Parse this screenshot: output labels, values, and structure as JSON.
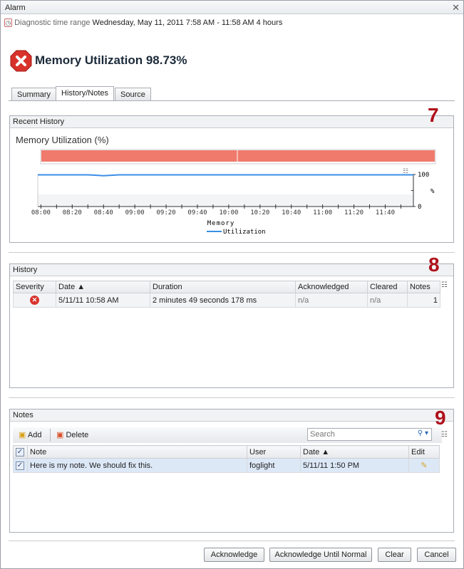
{
  "window": {
    "title": "Alarm",
    "close_icon": "close-icon"
  },
  "range": {
    "label": "Diagnostic time range",
    "value": "Wednesday, May 11, 2011  7:58 AM - 11:58 AM  4 hours"
  },
  "alarm": {
    "title": "Memory Utilization 98.73%",
    "severity": "critical"
  },
  "tabs": [
    {
      "label": "Summary"
    },
    {
      "label": "History/Notes",
      "active": true
    },
    {
      "label": "Source"
    }
  ],
  "recent_history": {
    "header": "Recent History",
    "marker": "7"
  },
  "chart_data": {
    "type": "line",
    "title": "Memory Utilization (%)",
    "xlabel": "Memory",
    "ylabel": "%",
    "ylim": [
      0,
      100
    ],
    "yticks": [
      "100",
      "0"
    ],
    "xticks": [
      "08:00",
      "08:20",
      "08:40",
      "09:00",
      "09:20",
      "09:40",
      "10:00",
      "10:20",
      "10:40",
      "11:00",
      "11:20",
      "11:40"
    ],
    "xrange": [
      "07:58",
      "11:58"
    ],
    "series": [
      {
        "name": "Utilization",
        "color": "#3a8ee6",
        "x": [
          "07:58",
          "08:30",
          "08:40",
          "08:50",
          "09:00",
          "11:58"
        ],
        "values": [
          99,
          99,
          96,
          99,
          99,
          99
        ]
      }
    ],
    "status_bar": {
      "color": "#f07a6c"
    },
    "legend": "bottom"
  },
  "history": {
    "header": "History",
    "marker": "8",
    "columns": [
      "Severity",
      "Date ▲",
      "Duration",
      "Acknowledged",
      "Cleared",
      "Notes"
    ],
    "rows": [
      {
        "date": "5/11/11 10:58 AM",
        "duration": "2 minutes 49 seconds 178 ms",
        "acknowledged": "n/a",
        "cleared": "n/a",
        "notes": "1"
      }
    ]
  },
  "notes": {
    "header": "Notes",
    "marker": "9",
    "add": "Add",
    "delete": "Delete",
    "search_placeholder": "Search",
    "columns": [
      "Note",
      "User",
      "Date ▲",
      "Edit"
    ],
    "rows": [
      {
        "note": "Here is my note. We should fix this.",
        "user": "foglight",
        "date": "5/11/11 1:50 PM"
      }
    ]
  },
  "buttons": {
    "acknowledge": "Acknowledge",
    "ack_until_normal": "Acknowledge Until Normal",
    "clear": "Clear",
    "cancel": "Cancel"
  }
}
